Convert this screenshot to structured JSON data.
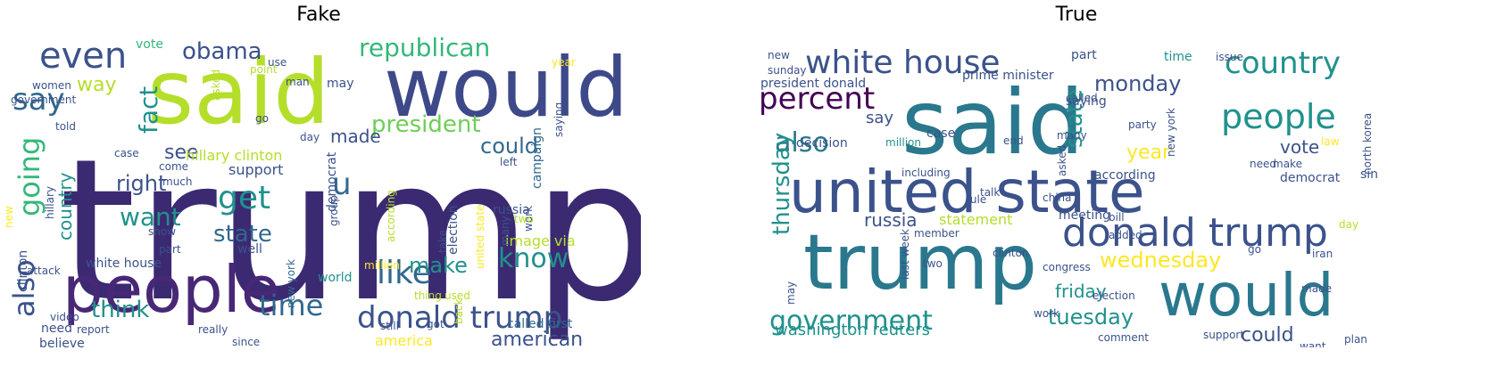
{
  "titles": {
    "fake": "Fake",
    "true": "True"
  },
  "palette": [
    "#440154",
    "#46327e",
    "#365c8d",
    "#277f8e",
    "#1fa187",
    "#4ac16d",
    "#a0da39",
    "#fde725"
  ],
  "fake_words": [
    {
      "text": "trump",
      "c": "#3b2a72"
    },
    {
      "text": "said",
      "c": "#b5de2b"
    },
    {
      "text": "would",
      "c": "#3e4989"
    },
    {
      "text": "people",
      "c": "#482777"
    },
    {
      "text": "even",
      "c": "#3b528b"
    },
    {
      "text": "republican",
      "c": "#35b779"
    },
    {
      "text": "obama",
      "c": "#3b528b"
    },
    {
      "text": "say",
      "c": "#31688e"
    },
    {
      "text": "going",
      "c": "#35b779"
    },
    {
      "text": "also",
      "c": "#3b528b"
    },
    {
      "text": "fact",
      "c": "#21918c"
    },
    {
      "text": "way",
      "c": "#b5de2b"
    },
    {
      "text": "president",
      "c": "#6ece58"
    },
    {
      "text": "could",
      "c": "#31688e"
    },
    {
      "text": "made",
      "c": "#3b528b"
    },
    {
      "text": "see",
      "c": "#3b528b"
    },
    {
      "text": "u",
      "c": "#31688e"
    },
    {
      "text": "get",
      "c": "#21918c"
    },
    {
      "text": "right",
      "c": "#3b528b"
    },
    {
      "text": "want",
      "c": "#21918c"
    },
    {
      "text": "country",
      "c": "#21918c"
    },
    {
      "text": "hillary clinton",
      "c": "#b5de2b"
    },
    {
      "text": "support",
      "c": "#3b528b"
    },
    {
      "text": "state",
      "c": "#31688e"
    },
    {
      "text": "democrat",
      "c": "#3b528b"
    },
    {
      "text": "like",
      "c": "#31688e"
    },
    {
      "text": "make",
      "c": "#21918c"
    },
    {
      "text": "know",
      "c": "#21918c"
    },
    {
      "text": "think",
      "c": "#21918c"
    },
    {
      "text": "time",
      "c": "#31688e"
    },
    {
      "text": "donald trump",
      "c": "#3b528b"
    },
    {
      "text": "american",
      "c": "#3b528b"
    },
    {
      "text": "america",
      "c": "#fde725"
    },
    {
      "text": "image via",
      "c": "#b5de2b"
    },
    {
      "text": "campaign",
      "c": "#31688e"
    },
    {
      "text": "election",
      "c": "#3b528b"
    },
    {
      "text": "white house",
      "c": "#3b528b"
    },
    {
      "text": "world",
      "c": "#21918c"
    },
    {
      "text": "clinton",
      "c": "#3b528b"
    },
    {
      "text": "need",
      "c": "#3b528b"
    },
    {
      "text": "believe",
      "c": "#3b528b"
    },
    {
      "text": "vote",
      "c": "#35b779"
    },
    {
      "text": "may",
      "c": "#3b528b"
    },
    {
      "text": "women",
      "c": "#3b528b"
    },
    {
      "text": "told",
      "c": "#3b528b"
    },
    {
      "text": "hillary",
      "c": "#3b528b"
    },
    {
      "text": "russia",
      "c": "#3b528b"
    },
    {
      "text": "show",
      "c": "#3b528b"
    },
    {
      "text": "work",
      "c": "#3b528b"
    },
    {
      "text": "many",
      "c": "#3b528b"
    },
    {
      "text": "take",
      "c": "#3b528b"
    },
    {
      "text": "thing",
      "c": "#b5de2b"
    },
    {
      "text": "new york",
      "c": "#31688e"
    },
    {
      "text": "according",
      "c": "#b5de2b"
    },
    {
      "text": "united state",
      "c": "#fde725"
    },
    {
      "text": "come",
      "c": "#3b528b"
    },
    {
      "text": "much",
      "c": "#3b528b"
    },
    {
      "text": "year",
      "c": "#fde725"
    },
    {
      "text": "saying",
      "c": "#3b528b"
    },
    {
      "text": "group",
      "c": "#3b528b"
    },
    {
      "text": "day",
      "c": "#3b528b"
    },
    {
      "text": "man",
      "c": "#3b528b"
    },
    {
      "text": "go",
      "c": "#3b528b"
    },
    {
      "text": "use",
      "c": "#3b528b"
    },
    {
      "text": "still",
      "c": "#3b528b"
    },
    {
      "text": "called first",
      "c": "#31688e"
    },
    {
      "text": "back",
      "c": "#b5de2b"
    },
    {
      "text": "video",
      "c": "#3b528b"
    },
    {
      "text": "report",
      "c": "#3b528b"
    },
    {
      "text": "since",
      "c": "#3b528b"
    },
    {
      "text": "well",
      "c": "#3b528b"
    },
    {
      "text": "part",
      "c": "#3b528b"
    },
    {
      "text": "new",
      "c": "#fde725"
    },
    {
      "text": "case",
      "c": "#3b528b"
    },
    {
      "text": "left",
      "c": "#3b528b"
    },
    {
      "text": "million",
      "c": "#fde725"
    },
    {
      "text": "government",
      "c": "#3b528b"
    },
    {
      "text": "asked",
      "c": "#b5de2b"
    },
    {
      "text": "point",
      "c": "#b5de2b"
    },
    {
      "text": "really",
      "c": "#3b528b"
    },
    {
      "text": "two",
      "c": "#b5de2b"
    },
    {
      "text": "attack",
      "c": "#3b528b"
    },
    {
      "text": "used",
      "c": "#b5de2b"
    },
    {
      "text": "got",
      "c": "#3b528b"
    }
  ],
  "true_words": [
    {
      "text": "said",
      "c": "#2a788e"
    },
    {
      "text": "united state",
      "c": "#3b528b"
    },
    {
      "text": "trump",
      "c": "#2a788e"
    },
    {
      "text": "would",
      "c": "#2a788e"
    },
    {
      "text": "white house",
      "c": "#3b528b"
    },
    {
      "text": "country",
      "c": "#21918c"
    },
    {
      "text": "percent",
      "c": "#440154"
    },
    {
      "text": "people",
      "c": "#21918c"
    },
    {
      "text": "also",
      "c": "#2a788e"
    },
    {
      "text": "monday",
      "c": "#3b528b"
    },
    {
      "text": "state",
      "c": "#21918c"
    },
    {
      "text": "year",
      "c": "#fde725"
    },
    {
      "text": "vote",
      "c": "#3b528b"
    },
    {
      "text": "donald trump",
      "c": "#3b528b"
    },
    {
      "text": "government",
      "c": "#21918c"
    },
    {
      "text": "thursday",
      "c": "#21918c"
    },
    {
      "text": "russia",
      "c": "#3b528b"
    },
    {
      "text": "statement",
      "c": "#b5de2b"
    },
    {
      "text": "wednesday",
      "c": "#fde725"
    },
    {
      "text": "friday",
      "c": "#21918c"
    },
    {
      "text": "tuesday",
      "c": "#21918c"
    },
    {
      "text": "washington reuters",
      "c": "#21918c"
    },
    {
      "text": "could",
      "c": "#3b528b"
    },
    {
      "text": "say",
      "c": "#3b528b"
    },
    {
      "text": "prime minister",
      "c": "#3b528b"
    },
    {
      "text": "president donald",
      "c": "#3b528b"
    },
    {
      "text": "saying",
      "c": "#3b528b"
    },
    {
      "text": "called",
      "c": "#3b528b"
    },
    {
      "text": "decision",
      "c": "#3b528b"
    },
    {
      "text": "million",
      "c": "#21918c"
    },
    {
      "text": "including",
      "c": "#3b528b"
    },
    {
      "text": "according",
      "c": "#3b528b"
    },
    {
      "text": "meeting",
      "c": "#3b528b"
    },
    {
      "text": "china",
      "c": "#3b528b"
    },
    {
      "text": "congress",
      "c": "#3b528b"
    },
    {
      "text": "election",
      "c": "#3b528b"
    },
    {
      "text": "support",
      "c": "#3b528b"
    },
    {
      "text": "comment",
      "c": "#3b528b"
    },
    {
      "text": "iran",
      "c": "#3b528b"
    },
    {
      "text": "democrat",
      "c": "#3b528b"
    },
    {
      "text": "since",
      "c": "#3b528b"
    },
    {
      "text": "need",
      "c": "#3b528b"
    },
    {
      "text": "make",
      "c": "#3b528b"
    },
    {
      "text": "law",
      "c": "#fde725"
    },
    {
      "text": "new york",
      "c": "#3b528b"
    },
    {
      "text": "north korea",
      "c": "#3b528b"
    },
    {
      "text": "time",
      "c": "#21918c"
    },
    {
      "text": "issue",
      "c": "#3b528b"
    },
    {
      "text": "part",
      "c": "#3b528b"
    },
    {
      "text": "many",
      "c": "#3b528b"
    },
    {
      "text": "case",
      "c": "#3b528b"
    },
    {
      "text": "clinton",
      "c": "#3b528b"
    },
    {
      "text": "member",
      "c": "#3b528b"
    },
    {
      "text": "plan",
      "c": "#3b528b"
    },
    {
      "text": "want",
      "c": "#3b528b"
    },
    {
      "text": "day",
      "c": "#b5de2b"
    },
    {
      "text": "may",
      "c": "#3b528b"
    },
    {
      "text": "made",
      "c": "#3b528b"
    },
    {
      "text": "end",
      "c": "#3b528b"
    },
    {
      "text": "two",
      "c": "#3b528b"
    },
    {
      "text": "asked",
      "c": "#3b528b"
    },
    {
      "text": "party",
      "c": "#3b528b"
    },
    {
      "text": "new",
      "c": "#3b528b"
    },
    {
      "text": "work",
      "c": "#3b528b"
    },
    {
      "text": "bill",
      "c": "#3b528b"
    },
    {
      "text": "added",
      "c": "#3b528b"
    },
    {
      "text": "talk",
      "c": "#3b528b"
    },
    {
      "text": "rule",
      "c": "#3b528b"
    },
    {
      "text": "sunday",
      "c": "#3b528b"
    },
    {
      "text": "last week",
      "c": "#3b528b"
    },
    {
      "text": "go",
      "c": "#3b528b"
    }
  ]
}
